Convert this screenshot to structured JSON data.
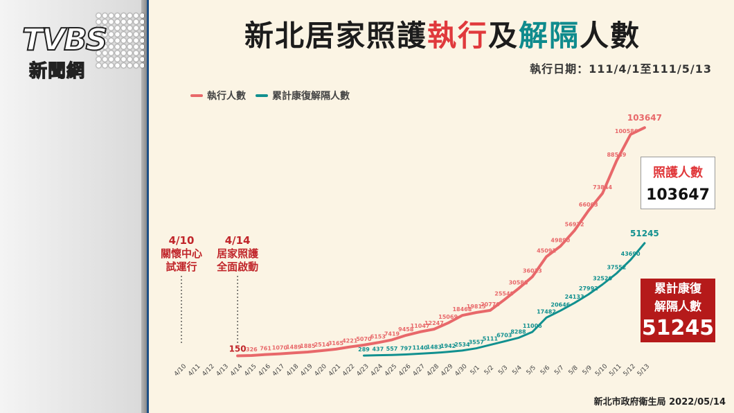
{
  "logo": {
    "main": "TVBS",
    "sub": "新聞網"
  },
  "title": {
    "part1": "新北居家照護",
    "part2": "執行",
    "part3": "及",
    "part4": "解隔",
    "part5": "人數"
  },
  "subtitle": "執行日期：111/4/1至111/5/13",
  "boxes": {
    "care_label": "照護人數",
    "care_value": "103647",
    "recovery_label_1": "累計康復",
    "recovery_label_2": "解隔人數",
    "recovery_value": "51245"
  },
  "footer": "新北市政府衛生局 2022/05/14",
  "colors": {
    "care": "#e8686a",
    "recovery": "#11908f",
    "annotation": "#c0252a"
  },
  "chart_data": {
    "type": "line",
    "title": "新北居家照護執行及解隔人數",
    "x": [
      "4/10",
      "4/11",
      "4/12",
      "4/13",
      "4/14",
      "4/15",
      "4/16",
      "4/17",
      "4/18",
      "4/19",
      "4/20",
      "4/21",
      "4/22",
      "4/23",
      "4/24",
      "4/25",
      "4/26",
      "4/27",
      "4/28",
      "4/29",
      "4/30",
      "5/1",
      "5/2",
      "5/3",
      "5/4",
      "5/5",
      "5/6",
      "5/7",
      "5/8",
      "5/9",
      "5/10",
      "5/11",
      "5/12",
      "5/13"
    ],
    "series": [
      {
        "name": "執行人數",
        "labels_from_index": 4,
        "values": [
          null,
          null,
          null,
          null,
          150,
          326,
          761,
          1070,
          1489,
          1885,
          2514,
          3165,
          4221,
          5070,
          6153,
          7419,
          9458,
          11047,
          12247,
          15069,
          18468,
          19815,
          20770,
          25549,
          30588,
          36023,
          45091,
          49890,
          56972,
          66003,
          73844,
          88589,
          100586,
          103647
        ]
      },
      {
        "name": "累計康復解隔人數",
        "labels_from_index": 13,
        "values": [
          null,
          null,
          null,
          null,
          null,
          null,
          null,
          null,
          null,
          null,
          null,
          null,
          null,
          289,
          437,
          557,
          797,
          1140,
          1483,
          1942,
          2534,
          3557,
          5111,
          6703,
          8288,
          11006,
          17482,
          20646,
          24133,
          27992,
          32520,
          37552,
          43690,
          51245
        ]
      }
    ],
    "ylim": [
      0,
      110000
    ],
    "grid": false,
    "legend_position": "top-left",
    "annotations": [
      {
        "x": "4/10",
        "lines": [
          "4/10",
          "關懷中心",
          "試運行"
        ]
      },
      {
        "x": "4/14",
        "lines": [
          "4/14",
          "居家照護",
          "全面啟動"
        ]
      }
    ]
  }
}
